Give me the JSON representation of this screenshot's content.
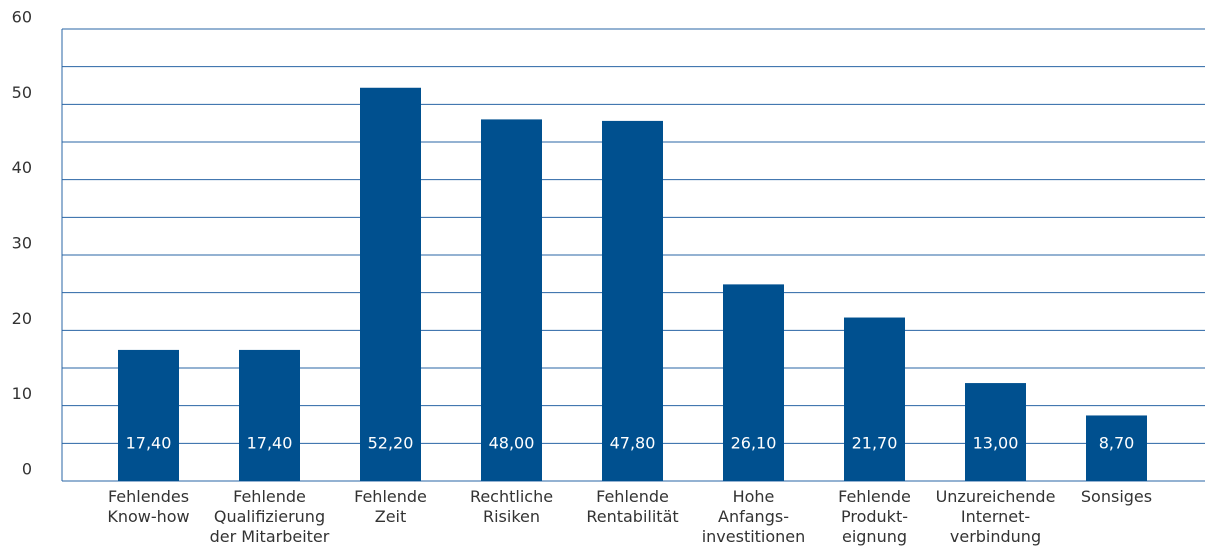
{
  "chart_data": {
    "type": "bar",
    "categories": [
      [
        "Fehlendes",
        "Know-how"
      ],
      [
        "Fehlende",
        "Qualifizierung",
        "der Mitarbeiter"
      ],
      [
        "Fehlende",
        "Zeit"
      ],
      [
        "Rechtliche",
        "Risiken"
      ],
      [
        "Fehlende",
        "Rentabilität"
      ],
      [
        "Hohe",
        "Anfangs-",
        "investitionen"
      ],
      [
        "Fehlende",
        "Produkt-",
        "eignung"
      ],
      [
        "Unzureichende",
        "Internet-",
        "verbindung"
      ],
      [
        "Sonsiges"
      ]
    ],
    "values": [
      17.4,
      17.4,
      52.2,
      48.0,
      47.8,
      26.1,
      21.7,
      13.0,
      8.7
    ],
    "value_labels": [
      "17,40",
      "17,40",
      "52,20",
      "48,00",
      "47,80",
      "26,10",
      "21,70",
      "13,00",
      "8,70"
    ],
    "color": "#00508f",
    "ylim": [
      0,
      60
    ],
    "yticks": [
      0,
      10,
      20,
      30,
      40,
      50,
      60
    ],
    "minor_yticks": [
      5,
      15,
      25,
      35,
      45,
      55
    ],
    "grid": true
  }
}
